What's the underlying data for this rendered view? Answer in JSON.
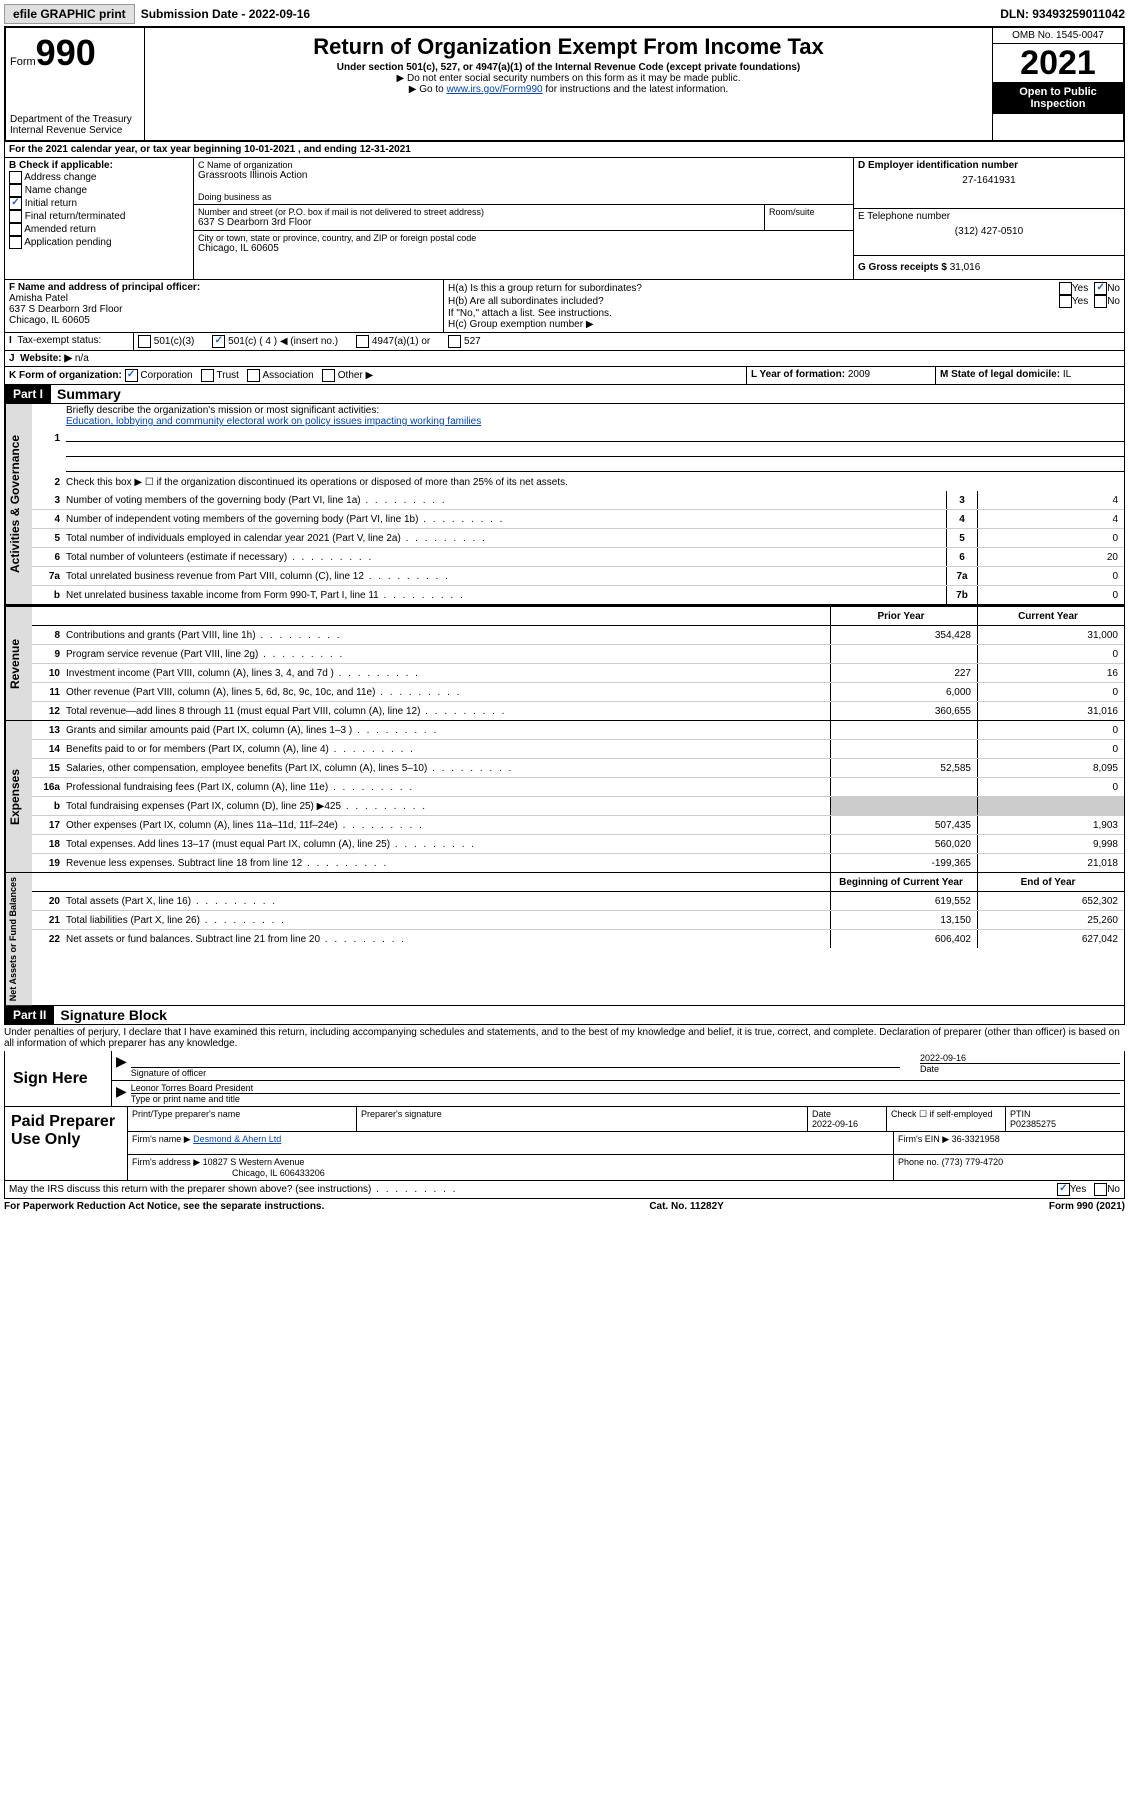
{
  "topbar": {
    "efile": "efile GRAPHIC print",
    "sub_label": "Submission Date - 2022-09-16",
    "dln": "DLN: 93493259011042"
  },
  "header": {
    "form_word": "Form",
    "form_num": "990",
    "dept": "Department of the Treasury",
    "irs": "Internal Revenue Service",
    "title": "Return of Organization Exempt From Income Tax",
    "sub1": "Under section 501(c), 527, or 4947(a)(1) of the Internal Revenue Code (except private foundations)",
    "sub2": "▶ Do not enter social security numbers on this form as it may be made public.",
    "sub3_pre": "▶ Go to ",
    "sub3_link": "www.irs.gov/Form990",
    "sub3_post": " for instructions and the latest information.",
    "omb": "OMB No. 1545-0047",
    "year": "2021",
    "open": "Open to Public Inspection"
  },
  "A": {
    "text": "For the 2021 calendar year, or tax year beginning 10-01-2021   , and ending 12-31-2021"
  },
  "B": {
    "label": "B Check if applicable:",
    "opts": [
      "Address change",
      "Name change",
      "Initial return",
      "Final return/terminated",
      "Amended return",
      "Application pending"
    ],
    "checked_idx": 2
  },
  "C": {
    "name_label": "C Name of organization",
    "name": "Grassroots Illinois Action",
    "dba_label": "Doing business as",
    "addr_label": "Number and street (or P.O. box if mail is not delivered to street address)",
    "room_label": "Room/suite",
    "addr": "637 S Dearborn 3rd Floor",
    "city_label": "City or town, state or province, country, and ZIP or foreign postal code",
    "city": "Chicago, IL  60605"
  },
  "D": {
    "label": "D Employer identification number",
    "val": "27-1641931"
  },
  "E": {
    "label": "E Telephone number",
    "val": "(312) 427-0510"
  },
  "G": {
    "label": "G Gross receipts $",
    "val": "31,016"
  },
  "F": {
    "label": "F Name and address of principal officer:",
    "name": "Amisha Patel",
    "addr1": "637 S Dearborn 3rd Floor",
    "addr2": "Chicago, IL  60605"
  },
  "H": {
    "a": "H(a)  Is this a group return for subordinates?",
    "b": "H(b)  Are all subordinates included?",
    "b_note": "If \"No,\" attach a list. See instructions.",
    "c": "H(c)  Group exemption number ▶",
    "yes": "Yes",
    "no": "No"
  },
  "I": {
    "label": "Tax-exempt status:",
    "opts": [
      "501(c)(3)",
      "501(c) ( 4 ) ◀ (insert no.)",
      "4947(a)(1) or",
      "527"
    ],
    "checked_idx": 1
  },
  "J": {
    "label": "Website: ▶",
    "val": "n/a"
  },
  "K": {
    "label": "K Form of organization:",
    "opts": [
      "Corporation",
      "Trust",
      "Association",
      "Other ▶"
    ],
    "checked_idx": 0
  },
  "L": {
    "label": "L Year of formation:",
    "val": "2009"
  },
  "M": {
    "label": "M State of legal domicile:",
    "val": "IL"
  },
  "partI": {
    "header": "Part I",
    "title": "Summary",
    "line1_label": "Briefly describe the organization's mission or most significant activities:",
    "line1_text": "Education, lobbying and community electoral work on policy issues impacting working families",
    "line2": "Check this box ▶ ☐  if the organization discontinued its operations or disposed of more than 25% of its net assets.",
    "tabs": {
      "gov": "Activities & Governance",
      "rev": "Revenue",
      "exp": "Expenses",
      "net": "Net Assets or Fund Balances"
    },
    "gov_lines": [
      {
        "n": "3",
        "t": "Number of voting members of the governing body (Part VI, line 1a)",
        "box": "3",
        "v": "4"
      },
      {
        "n": "4",
        "t": "Number of independent voting members of the governing body (Part VI, line 1b)",
        "box": "4",
        "v": "4"
      },
      {
        "n": "5",
        "t": "Total number of individuals employed in calendar year 2021 (Part V, line 2a)",
        "box": "5",
        "v": "0"
      },
      {
        "n": "6",
        "t": "Total number of volunteers (estimate if necessary)",
        "box": "6",
        "v": "20"
      },
      {
        "n": "7a",
        "t": "Total unrelated business revenue from Part VIII, column (C), line 12",
        "box": "7a",
        "v": "0"
      },
      {
        "n": "b",
        "t": "Net unrelated business taxable income from Form 990-T, Part I, line 11",
        "box": "7b",
        "v": "0"
      }
    ],
    "col_prior": "Prior Year",
    "col_current": "Current Year",
    "col_begin": "Beginning of Current Year",
    "col_end": "End of Year",
    "rev_lines": [
      {
        "n": "8",
        "t": "Contributions and grants (Part VIII, line 1h)",
        "p": "354,428",
        "c": "31,000"
      },
      {
        "n": "9",
        "t": "Program service revenue (Part VIII, line 2g)",
        "p": "",
        "c": "0"
      },
      {
        "n": "10",
        "t": "Investment income (Part VIII, column (A), lines 3, 4, and 7d )",
        "p": "227",
        "c": "16"
      },
      {
        "n": "11",
        "t": "Other revenue (Part VIII, column (A), lines 5, 6d, 8c, 9c, 10c, and 11e)",
        "p": "6,000",
        "c": "0"
      },
      {
        "n": "12",
        "t": "Total revenue—add lines 8 through 11 (must equal Part VIII, column (A), line 12)",
        "p": "360,655",
        "c": "31,016"
      }
    ],
    "exp_lines": [
      {
        "n": "13",
        "t": "Grants and similar amounts paid (Part IX, column (A), lines 1–3 )",
        "p": "",
        "c": "0"
      },
      {
        "n": "14",
        "t": "Benefits paid to or for members (Part IX, column (A), line 4)",
        "p": "",
        "c": "0"
      },
      {
        "n": "15",
        "t": "Salaries, other compensation, employee benefits (Part IX, column (A), lines 5–10)",
        "p": "52,585",
        "c": "8,095"
      },
      {
        "n": "16a",
        "t": "Professional fundraising fees (Part IX, column (A), line 11e)",
        "p": "",
        "c": "0"
      },
      {
        "n": "b",
        "t": "Total fundraising expenses (Part IX, column (D), line 25) ▶425",
        "p": "shaded",
        "c": "shaded"
      },
      {
        "n": "17",
        "t": "Other expenses (Part IX, column (A), lines 11a–11d, 11f–24e)",
        "p": "507,435",
        "c": "1,903"
      },
      {
        "n": "18",
        "t": "Total expenses. Add lines 13–17 (must equal Part IX, column (A), line 25)",
        "p": "560,020",
        "c": "9,998"
      },
      {
        "n": "19",
        "t": "Revenue less expenses. Subtract line 18 from line 12",
        "p": "-199,365",
        "c": "21,018"
      }
    ],
    "net_lines": [
      {
        "n": "20",
        "t": "Total assets (Part X, line 16)",
        "p": "619,552",
        "c": "652,302"
      },
      {
        "n": "21",
        "t": "Total liabilities (Part X, line 26)",
        "p": "13,150",
        "c": "25,260"
      },
      {
        "n": "22",
        "t": "Net assets or fund balances. Subtract line 21 from line 20",
        "p": "606,402",
        "c": "627,042"
      }
    ]
  },
  "partII": {
    "header": "Part II",
    "title": "Signature Block",
    "decl": "Under penalties of perjury, I declare that I have examined this return, including accompanying schedules and statements, and to the best of my knowledge and belief, it is true, correct, and complete. Declaration of preparer (other than officer) is based on all information of which preparer has any knowledge."
  },
  "sign": {
    "label": "Sign Here",
    "sig_label": "Signature of officer",
    "date_label": "Date",
    "date": "2022-09-16",
    "name": "Leonor Torres Board President",
    "name_label": "Type or print name and title"
  },
  "prep": {
    "label": "Paid Preparer Use Only",
    "h1": "Print/Type preparer's name",
    "h2": "Preparer's signature",
    "h3": "Date",
    "date": "2022-09-16",
    "check_label": "Check ☐ if self-employed",
    "ptin_label": "PTIN",
    "ptin": "P02385275",
    "firm_name_label": "Firm's name      ▶",
    "firm_name": "Desmond & Ahern Ltd",
    "firm_ein_label": "Firm's EIN ▶",
    "firm_ein": "36-3321958",
    "firm_addr_label": "Firm's address ▶",
    "firm_addr1": "10827 S Western Avenue",
    "firm_addr2": "Chicago, IL  606433206",
    "phone_label": "Phone no.",
    "phone": "(773) 779-4720"
  },
  "footer": {
    "discuss": "May the IRS discuss this return with the preparer shown above? (see instructions)",
    "yes": "Yes",
    "no": "No",
    "paperwork": "For Paperwork Reduction Act Notice, see the separate instructions.",
    "cat": "Cat. No. 11282Y",
    "form": "Form 990 (2021)"
  }
}
